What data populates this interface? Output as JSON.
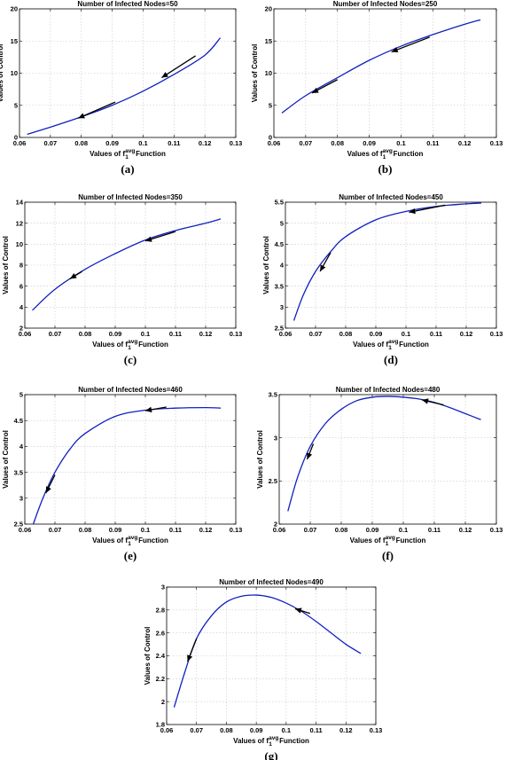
{
  "figure": {
    "xlabel_prefix": "Values of f",
    "xlabel_sub": "1",
    "xlabel_sup": "avg",
    "xlabel_suffix": " Function",
    "ylabel": "Values of Control"
  },
  "chart_data": [
    {
      "type": "line",
      "title": "Number of Infected Nodes=50",
      "label": "(a)",
      "xlim": [
        0.06,
        0.13
      ],
      "ylim": [
        0,
        20
      ],
      "xticks": [
        "0.06",
        "0.07",
        "0.08",
        "0.09",
        "0.1",
        "0.11",
        "0.12",
        "0.13"
      ],
      "yticks": [
        "0",
        "5",
        "10",
        "15",
        "20"
      ],
      "x": [
        0.0625,
        0.07,
        0.08,
        0.09,
        0.1,
        0.11,
        0.12,
        0.125
      ],
      "y": [
        0.5,
        1.6,
        3.2,
        5.0,
        7.2,
        9.8,
        12.8,
        15.5
      ],
      "trajectories": [
        {
          "x": [
            0.091,
            0.079
          ],
          "y": [
            5.5,
            3.0
          ]
        },
        {
          "x": [
            0.117,
            0.106
          ],
          "y": [
            12.7,
            9.3
          ]
        }
      ]
    },
    {
      "type": "line",
      "title": "Number of Infected Nodes=250",
      "label": "(b)",
      "xlim": [
        0.06,
        0.13
      ],
      "ylim": [
        0,
        20
      ],
      "xticks": [
        "0.06",
        "0.07",
        "0.08",
        "0.09",
        "0.1",
        "0.11",
        "0.12",
        "0.13"
      ],
      "yticks": [
        "0",
        "5",
        "10",
        "15",
        "20"
      ],
      "x": [
        0.0625,
        0.07,
        0.08,
        0.09,
        0.1,
        0.11,
        0.12,
        0.125
      ],
      "y": [
        3.8,
        6.5,
        9.3,
        12.0,
        14.2,
        16.0,
        17.6,
        18.3
      ],
      "trajectories": [
        {
          "x": [
            0.08,
            0.072
          ],
          "y": [
            9.0,
            6.9
          ]
        },
        {
          "x": [
            0.109,
            0.097
          ],
          "y": [
            15.6,
            13.3
          ]
        }
      ]
    },
    {
      "type": "line",
      "title": "Number of Infected Nodes=350",
      "label": "(c)",
      "xlim": [
        0.06,
        0.13
      ],
      "ylim": [
        2,
        14
      ],
      "xticks": [
        "0.06",
        "0.07",
        "0.08",
        "0.09",
        "0.1",
        "0.11",
        "0.12",
        "0.13"
      ],
      "yticks": [
        "2",
        "4",
        "6",
        "8",
        "10",
        "12",
        "14"
      ],
      "x": [
        0.0625,
        0.07,
        0.08,
        0.09,
        0.1,
        0.11,
        0.12,
        0.125
      ],
      "y": [
        3.7,
        5.7,
        7.6,
        9.1,
        10.4,
        11.3,
        12.0,
        12.4
      ],
      "trajectories": [
        {
          "x": [
            0.079,
            0.075
          ],
          "y": [
            7.4,
            6.7
          ]
        },
        {
          "x": [
            0.11,
            0.1
          ],
          "y": [
            11.2,
            10.3
          ]
        }
      ]
    },
    {
      "type": "line",
      "title": "Number of Infected Nodes=450",
      "label": "(d)",
      "xlim": [
        0.06,
        0.13
      ],
      "ylim": [
        2.5,
        5.5
      ],
      "xticks": [
        "0.06",
        "0.07",
        "0.08",
        "0.09",
        "0.1",
        "0.11",
        "0.12",
        "0.13"
      ],
      "yticks": [
        "2.5",
        "3",
        "3.5",
        "4",
        "4.5",
        "5",
        "5.5"
      ],
      "x": [
        0.0628,
        0.066,
        0.07,
        0.075,
        0.08,
        0.09,
        0.1,
        0.11,
        0.12,
        0.125
      ],
      "y": [
        2.68,
        3.3,
        3.85,
        4.32,
        4.68,
        5.08,
        5.28,
        5.4,
        5.46,
        5.48
      ],
      "trajectories": [
        {
          "x": [
            0.075,
            0.0715
          ],
          "y": [
            4.3,
            3.85
          ]
        },
        {
          "x": [
            0.113,
            0.101
          ],
          "y": [
            5.43,
            5.26
          ]
        }
      ]
    },
    {
      "type": "line",
      "title": "Number of Infected Nodes=460",
      "label": "(e)",
      "xlim": [
        0.06,
        0.13
      ],
      "ylim": [
        2.5,
        5
      ],
      "xticks": [
        "0.06",
        "0.07",
        "0.08",
        "0.09",
        "0.1",
        "0.11",
        "0.12",
        "0.13"
      ],
      "yticks": [
        "2.5",
        "3",
        "3.5",
        "4",
        "4.5",
        "5"
      ],
      "x": [
        0.0628,
        0.066,
        0.07,
        0.075,
        0.08,
        0.09,
        0.1,
        0.11,
        0.12,
        0.125
      ],
      "y": [
        2.5,
        3.0,
        3.5,
        3.95,
        4.25,
        4.58,
        4.7,
        4.74,
        4.75,
        4.74
      ],
      "trajectories": [
        {
          "x": [
            0.07,
            0.067
          ],
          "y": [
            3.45,
            3.1
          ]
        },
        {
          "x": [
            0.107,
            0.1
          ],
          "y": [
            4.76,
            4.69
          ]
        }
      ]
    },
    {
      "type": "line",
      "title": "Number of Infected Nodes=480",
      "label": "(f)",
      "xlim": [
        0.06,
        0.13
      ],
      "ylim": [
        2,
        3.5
      ],
      "xticks": [
        "0.06",
        "0.07",
        "0.08",
        "0.09",
        "0.1",
        "0.11",
        "0.12",
        "0.13"
      ],
      "yticks": [
        "2",
        "2.5",
        "3",
        "3.5"
      ],
      "x": [
        0.0628,
        0.066,
        0.07,
        0.075,
        0.08,
        0.085,
        0.09,
        0.095,
        0.1,
        0.105,
        0.11,
        0.115,
        0.12,
        0.125
      ],
      "y": [
        2.15,
        2.55,
        2.9,
        3.17,
        3.33,
        3.43,
        3.47,
        3.48,
        3.47,
        3.45,
        3.41,
        3.35,
        3.28,
        3.21
      ],
      "trajectories": [
        {
          "x": [
            0.071,
            0.069
          ],
          "y": [
            2.93,
            2.75
          ]
        },
        {
          "x": [
            0.113,
            0.106
          ],
          "y": [
            3.38,
            3.44
          ]
        }
      ]
    },
    {
      "type": "line",
      "title": "Number of Infected Nodes=490",
      "label": "(g)",
      "xlim": [
        0.06,
        0.13
      ],
      "ylim": [
        1.8,
        3
      ],
      "xticks": [
        "0.06",
        "0.07",
        "0.08",
        "0.09",
        "0.1",
        "0.11",
        "0.12",
        "0.13"
      ],
      "yticks": [
        "1.8",
        "2",
        "2.2",
        "2.4",
        "2.6",
        "2.8",
        "3"
      ],
      "x": [
        0.0625,
        0.066,
        0.07,
        0.075,
        0.08,
        0.085,
        0.09,
        0.095,
        0.1,
        0.105,
        0.11,
        0.115,
        0.12,
        0.125
      ],
      "y": [
        1.95,
        2.25,
        2.55,
        2.75,
        2.87,
        2.92,
        2.93,
        2.91,
        2.86,
        2.79,
        2.7,
        2.6,
        2.5,
        2.42
      ],
      "trajectories": [
        {
          "x": [
            0.07,
            0.067
          ],
          "y": [
            2.55,
            2.35
          ]
        },
        {
          "x": [
            0.108,
            0.103
          ],
          "y": [
            2.77,
            2.81
          ]
        }
      ]
    }
  ]
}
